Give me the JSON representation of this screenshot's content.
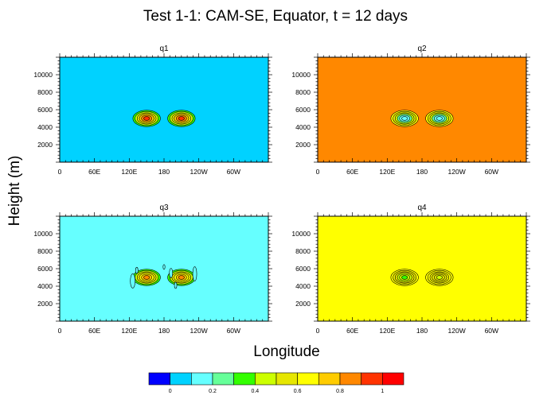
{
  "title": "Test 1-1: CAM-SE, Equator, t = 12 days",
  "xlabel": "Longitude",
  "ylabel": "Height (m)",
  "x_tick_labels": [
    "0",
    "60E",
    "120E",
    "180",
    "120W",
    "60W"
  ],
  "y_tick_labels": [
    "2000",
    "4000",
    "6000",
    "8000",
    "10000"
  ],
  "colorbar": {
    "colors": [
      "#0000ff",
      "#00d2ff",
      "#66ffff",
      "#66ff99",
      "#33ff00",
      "#ccff00",
      "#e6e600",
      "#ffff00",
      "#ffcc00",
      "#ff8800",
      "#ff3300",
      "#ff0000"
    ],
    "labels": [
      "0",
      "0.2",
      "0.4",
      "0.6",
      "0.8",
      "1"
    ]
  },
  "chart_data": [
    {
      "type": "heatmap",
      "title": "q1",
      "xlabel": "Longitude",
      "ylabel": "Height (m)",
      "xlim": [
        0,
        360
      ],
      "ylim": [
        0,
        12000
      ],
      "background_value": 0.1,
      "background_color": "#00d2ff",
      "features": [
        {
          "lon": 150,
          "height": 5000,
          "peak": 1.0,
          "peak_color": "#ff3300"
        },
        {
          "lon": 210,
          "height": 5000,
          "peak": 1.0,
          "peak_color": "#ff3300"
        }
      ]
    },
    {
      "type": "heatmap",
      "title": "q2",
      "xlabel": "Longitude",
      "ylabel": "Height (m)",
      "xlim": [
        0,
        360
      ],
      "ylim": [
        0,
        12000
      ],
      "background_value": 0.9,
      "background_color": "#ff8800",
      "features": [
        {
          "lon": 150,
          "height": 5000,
          "peak": 0.0,
          "peak_color": "#66ffff"
        },
        {
          "lon": 210,
          "height": 5000,
          "peak": 0.0,
          "peak_color": "#66ffff"
        }
      ]
    },
    {
      "type": "heatmap",
      "title": "q3",
      "xlabel": "Longitude",
      "ylabel": "Height (m)",
      "xlim": [
        0,
        360
      ],
      "ylim": [
        0,
        12000
      ],
      "background_value": 0.2,
      "background_color": "#66ffff",
      "features": [
        {
          "lon": 150,
          "height": 5000,
          "peak": 0.9,
          "peak_color": "#ff8800"
        },
        {
          "lon": 210,
          "height": 5000,
          "peak": 0.9,
          "peak_color": "#ff8800"
        }
      ]
    },
    {
      "type": "heatmap",
      "title": "q4",
      "xlabel": "Longitude",
      "ylabel": "Height (m)",
      "xlim": [
        0,
        360
      ],
      "ylim": [
        0,
        12000
      ],
      "background_value": 0.7,
      "background_color": "#ffff00",
      "features": [
        {
          "lon": 150,
          "height": 5000,
          "peak": 0.4,
          "peak_color": "#33ff00"
        },
        {
          "lon": 210,
          "height": 5000,
          "peak": 0.5,
          "peak_color": "#ccff00"
        }
      ]
    }
  ]
}
